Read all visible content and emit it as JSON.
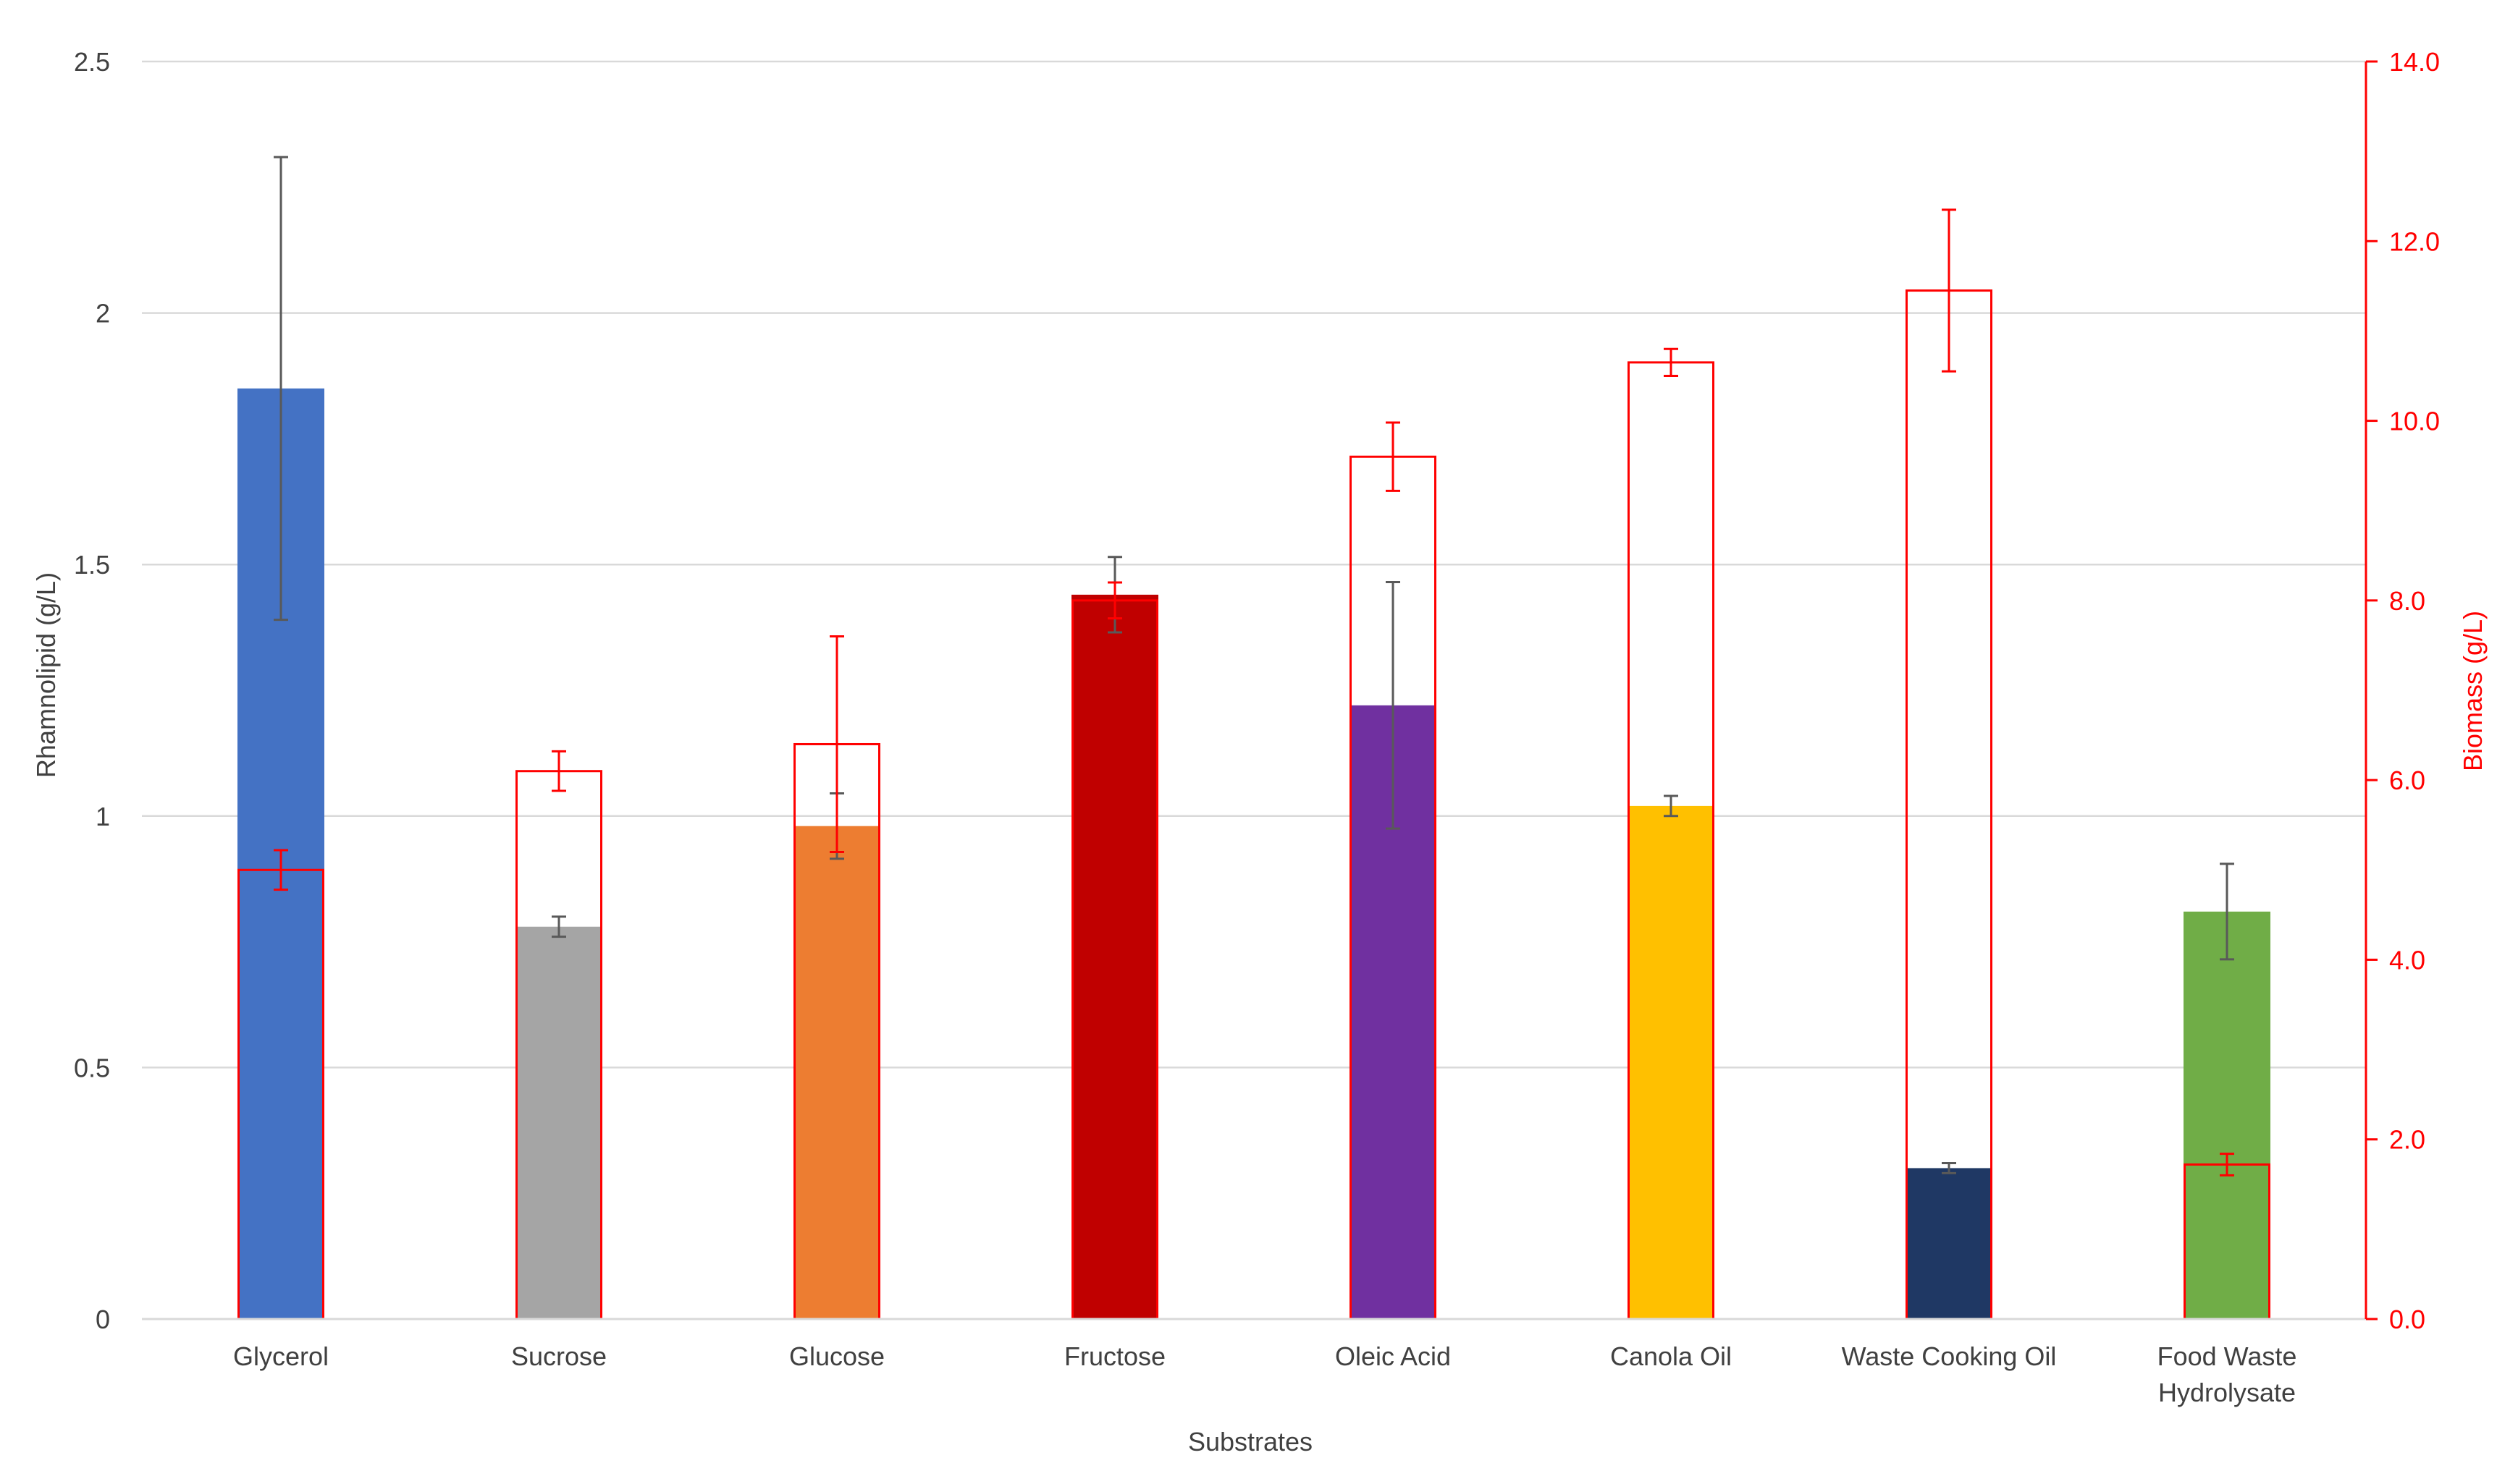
{
  "chart_data": {
    "type": "bar",
    "title": "",
    "xlabel": "Substrates",
    "ylabel": "Rhamnolipid (g/L)",
    "y2label": "Biomass (g/L)",
    "ylim": [
      0,
      2.5
    ],
    "y2lim": [
      0,
      14.0
    ],
    "yticks": [
      "0",
      "0.5",
      "1",
      "1.5",
      "2",
      "2.5"
    ],
    "y2ticks": [
      "0.0",
      "2.0",
      "4.0",
      "6.0",
      "8.0",
      "10.0",
      "12.0",
      "14.0"
    ],
    "grid": true,
    "categories": [
      "Glycerol",
      "Sucrose",
      "Glucose",
      "Fructose",
      "Oleic Acid",
      "Canola Oil",
      "Waste Cooking Oil",
      "Food Waste Hydrolysate"
    ],
    "category_lines": [
      [
        "Glycerol"
      ],
      [
        "Sucrose"
      ],
      [
        "Glucose"
      ],
      [
        "Fructose"
      ],
      [
        "Oleic Acid"
      ],
      [
        "Canola Oil"
      ],
      [
        "Waste Cooking Oil"
      ],
      [
        "Food Waste",
        "Hydrolysate"
      ]
    ],
    "series": [
      {
        "name": "Rhamnolipid (g/L)",
        "axis": "left",
        "style": "filled",
        "values": [
          1.85,
          0.78,
          0.98,
          1.44,
          1.22,
          1.02,
          0.3,
          0.81
        ],
        "errors": [
          0.46,
          0.02,
          0.065,
          0.075,
          0.245,
          0.02,
          0.01,
          0.095
        ],
        "colors": [
          "#4472C4",
          "#A5A5A5",
          "#ED7D31",
          "#C00000",
          "#7030A0",
          "#FFC000",
          "#1F3864",
          "#70AD47"
        ]
      },
      {
        "name": "Biomass (g/L)",
        "axis": "right",
        "style": "outline",
        "color": "#FF0000",
        "values": [
          5.0,
          6.1,
          6.4,
          8.0,
          9.6,
          10.65,
          11.45,
          1.72
        ],
        "errors": [
          0.22,
          0.22,
          1.2,
          0.2,
          0.38,
          0.15,
          0.9,
          0.12
        ]
      }
    ],
    "colors": {
      "axis_red": "#FF0000",
      "grid": "#D9D9D9",
      "error_gray": "#595959",
      "text": "#404040"
    }
  }
}
